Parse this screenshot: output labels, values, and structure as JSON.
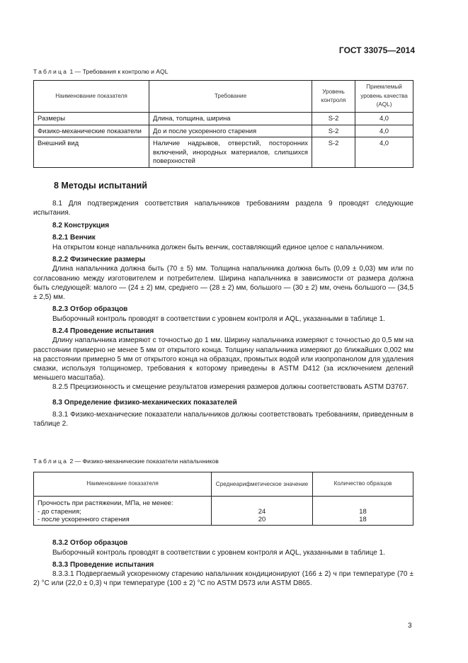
{
  "header": {
    "doc_code": "ГОСТ 33075—2014"
  },
  "table1": {
    "caption_prefix": "Таблица",
    "caption_rest": " 1 — Требования к контролю и AQL",
    "columns": [
      "Наименование показателя",
      "Требование",
      "Уровень контроля",
      "Приемлемый уровень качества (AQL)"
    ],
    "rows": [
      [
        "Размеры",
        "Длина, толщина, ширина",
        "S-2",
        "4,0"
      ],
      [
        "Физико-механические показатели",
        "До и после ускоренного старения",
        "S-2",
        "4,0"
      ],
      [
        "Внешний вид",
        "Наличие надрывов, отверстий, посторонних включений, инородных материалов, слипшихся поверхностей",
        "S-2",
        "4,0"
      ]
    ]
  },
  "section8": {
    "title": "8  Методы испытаний",
    "p8_1": "8.1  Для подтверждения соответствия напальчников требованиям раздела 9 проводят следующие испытания.",
    "h8_2": "8.2  Конструкция",
    "h8_2_1": "8.2.1  Венчик",
    "p8_2_1": "На открытом конце напальчника должен быть венчик, составляющий единое целое с напальчником.",
    "h8_2_2": "8.2.2  Физические размеры",
    "p8_2_2": "Длина напальчника должна быть (70 ± 5) мм. Толщина напальчника должна быть (0,09 ± 0,03) мм или по согласованию между изготовителем и потребителем. Ширина напальчника в зависимости от размера должна быть следующей: малого — (24 ± 2) мм, среднего — (28 ± 2) мм, большого — (30 ± 2) мм, очень большого — (34,5 ± 2,5) мм.",
    "h8_2_3": "8.2.3  Отбор образцов",
    "p8_2_3": "Выборочный контроль проводят в соответствии с уровнем контроля и AQL, указанными в таблице 1.",
    "h8_2_4": "8.2.4  Проведение испытания",
    "p8_2_4": "Длину напальчника измеряют с точностью до 1 мм. Ширину напальчника измеряют с точностью до 0,5 мм на расстоянии примерно не менее 5 мм от открытого конца. Толщину напальчника измеряют до ближайших 0,002 мм на расстоянии примерно 5 мм от открытого конца на образцах, промытых водой или изопропанолом для удаления смазки, используя толщиномер, требования к которому приведены в ASTM D412 (за исключением делений меньшего масштаба).",
    "p8_2_5": "8.2.5  Прецизионность и смещение результатов измерения размеров должны соответствовать ASTM D3767.",
    "h8_3": "8.3  Определение физико-механических показателей",
    "p8_3_1": "8.3.1  Физико-механические показатели напальчников должны соответствовать требованиям, приведенным в таблице 2.",
    "h8_3_2": "8.3.2  Отбор образцов",
    "p8_3_2": "Выборочный контроль проводят в соответствии с уровнем контроля и AQL, указанными в таблице 1.",
    "h8_3_3": "8.3.3  Проведение испытания",
    "p8_3_3_1": "8.3.3.1  Подвергаемый ускоренному старению напальчник кондиционируют (166 ± 2) ч при температуре (70 ± 2) °С или (22,0 ± 0,3) ч при температуре (100 ± 2) °С по ASTM D573 или ASTM D865."
  },
  "table2": {
    "caption_prefix": "Таблица",
    "caption_rest": " 2 — Физико-механические показатели напальчников",
    "columns": [
      "Наименование показателя",
      "Среднеарифметическое значение",
      "Количество образцов"
    ],
    "group_label": "Прочность при растяжении, МПа, не менее:",
    "rows": [
      [
        "- до старения;",
        "24",
        "18"
      ],
      [
        "- после ускоренного старения",
        "20",
        "18"
      ]
    ]
  },
  "page_number": "3"
}
